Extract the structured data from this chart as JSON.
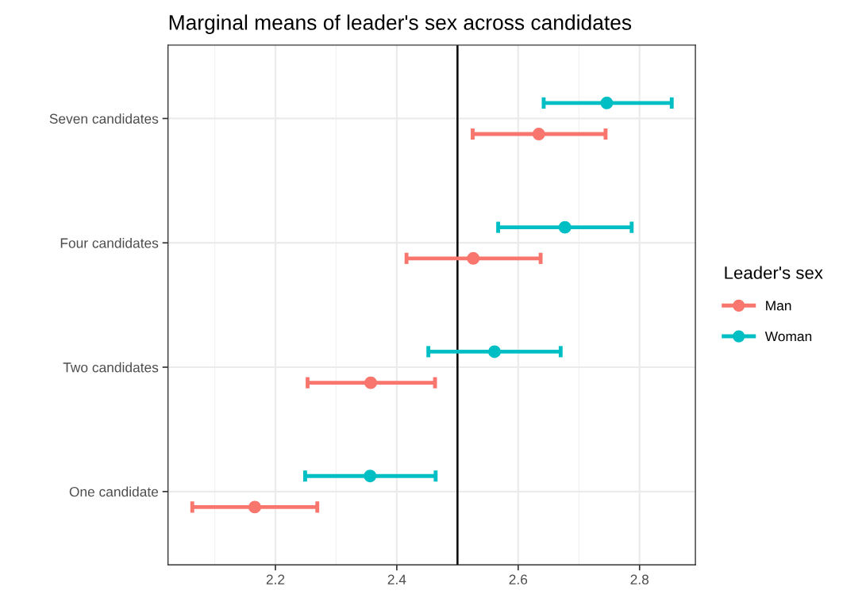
{
  "chart_data": {
    "type": "scatter",
    "orientation": "horizontal",
    "title": "Marginal means of leader's sex across candidates",
    "legend_title": "Leader's sex",
    "categories": [
      "Seven candidates",
      "Four candidates",
      "Two candidates",
      "One candidate"
    ],
    "series": [
      {
        "name": "Man",
        "color": "#f8766d",
        "values": [
          2.634,
          2.526,
          2.357,
          2.166
        ],
        "errors": [
          [
            2.525,
            2.744
          ],
          [
            2.416,
            2.637
          ],
          [
            2.253,
            2.463
          ],
          [
            2.063,
            2.269
          ]
        ]
      },
      {
        "name": "Woman",
        "color": "#00bfc4",
        "values": [
          2.746,
          2.677,
          2.561,
          2.356
        ],
        "errors": [
          [
            2.642,
            2.853
          ],
          [
            2.567,
            2.787
          ],
          [
            2.452,
            2.67
          ],
          [
            2.249,
            2.464
          ]
        ]
      }
    ],
    "xlim": [
      2.023,
      2.892
    ],
    "xticks": [
      2.2,
      2.4,
      2.6,
      2.8
    ],
    "ref_lines": [
      {
        "axis": "x",
        "value": 2.5,
        "color": "#000000"
      }
    ],
    "grid": true,
    "legend": "right",
    "marker": "circle"
  }
}
